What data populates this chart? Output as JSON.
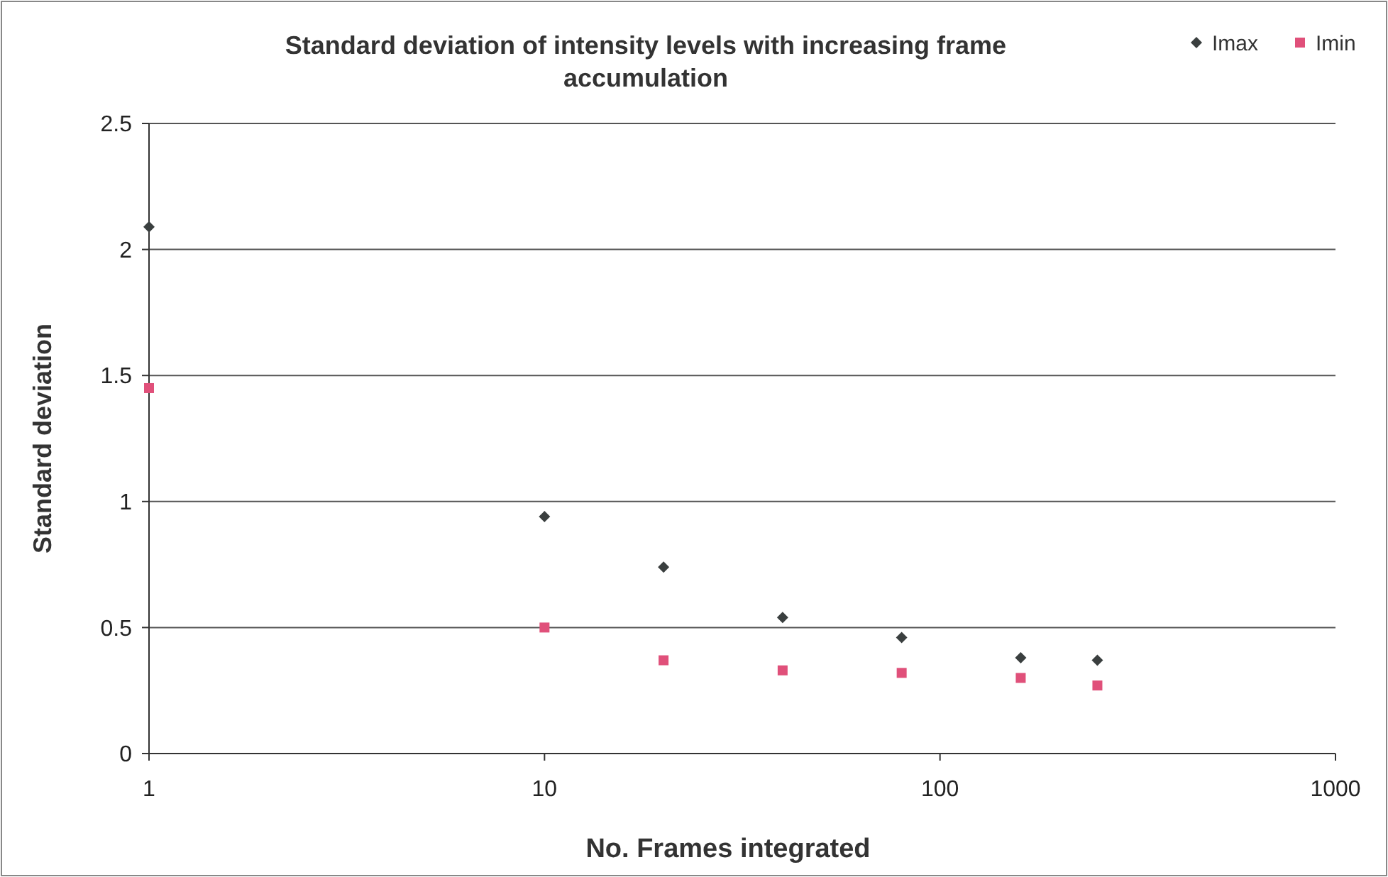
{
  "chart_data": {
    "type": "scatter",
    "title": "Standard deviation of intensity levels with increasing frame accumulation",
    "xlabel": "No. Frames integrated",
    "ylabel": "Standard deviation",
    "log": "x",
    "xlim": [
      1,
      1000
    ],
    "xticks": [
      1,
      10,
      100,
      1000
    ],
    "ylim": [
      0,
      2.5
    ],
    "yticks": [
      0,
      {
        "value": 0.5,
        "label": "0.5"
      },
      1,
      {
        "value": 1.5,
        "label": "1.5"
      },
      2,
      {
        "value": 2.5,
        "label": "2.5"
      }
    ],
    "grid": "y",
    "legend": "top right",
    "x": [
      1,
      10,
      20,
      40,
      80,
      160,
      250
    ],
    "series": [
      {
        "name": "Imax",
        "color": "#3a3f3f",
        "marker": "diamond",
        "values": [
          2.09,
          0.94,
          0.74,
          0.54,
          0.46,
          0.38,
          0.37
        ]
      },
      {
        "name": "Imin",
        "color": "#e0507a",
        "marker": "square",
        "values": [
          1.45,
          0.5,
          0.37,
          0.33,
          0.32,
          0.3,
          0.27
        ]
      }
    ]
  }
}
